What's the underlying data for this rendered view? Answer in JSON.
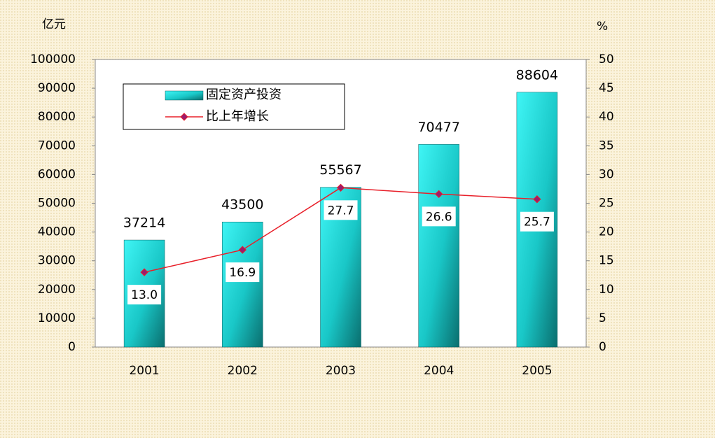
{
  "chart_data": {
    "type": "bar",
    "y_label": "亿元",
    "y2_label": "%",
    "categories": [
      "2001",
      "2002",
      "2003",
      "2004",
      "2005"
    ],
    "series": [
      {
        "name": "固定资产投资",
        "type": "bar",
        "color": "#1fd3d3",
        "values": [
          37214,
          43500,
          55567,
          70477,
          88604
        ]
      },
      {
        "name": "比上年增长",
        "type": "line",
        "axis": "y2",
        "color": "#e8202a",
        "marker_color": "#9b1b6e",
        "values": [
          13.0,
          16.9,
          27.7,
          26.6,
          25.7
        ],
        "value_labels": [
          "13.0",
          "16.9",
          "27.7",
          "26.6",
          "25.7"
        ]
      }
    ],
    "ylim": [
      0,
      100000
    ],
    "yticks": [
      0,
      10000,
      20000,
      30000,
      40000,
      50000,
      60000,
      70000,
      80000,
      90000,
      100000
    ],
    "y2lim": [
      0,
      50
    ],
    "y2ticks": [
      0,
      5,
      10,
      15,
      20,
      25,
      30,
      35,
      40,
      45,
      50
    ],
    "grid": false
  }
}
